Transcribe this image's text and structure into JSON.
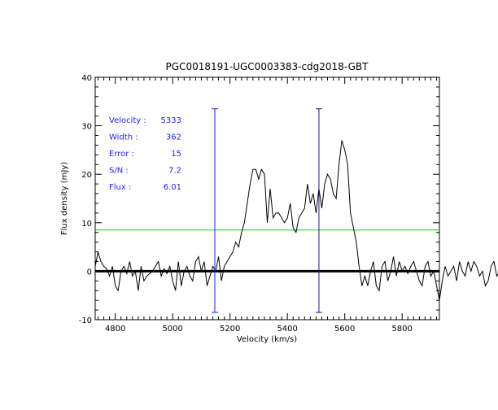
{
  "chart_data": {
    "type": "line",
    "title": "PGC0018191-UGC0003383-cdg2018-GBT",
    "xlabel": "Velocity (km/s)",
    "ylabel": "Flux density (mJy)",
    "xlim": [
      4730,
      5930
    ],
    "ylim": [
      -10,
      40
    ],
    "xticks": [
      4800,
      5000,
      5200,
      5400,
      5600,
      5800
    ],
    "yticks": [
      -10,
      0,
      10,
      20,
      30,
      40
    ],
    "grid": false,
    "x_start": 4730,
    "x_step": 10,
    "flux": [
      1,
      4,
      2,
      1,
      0.5,
      -1,
      1,
      -3,
      -4,
      0,
      1,
      -0.5,
      2,
      -1,
      0,
      -4,
      1,
      -2,
      -1,
      -0.5,
      0,
      1,
      2,
      -1,
      0.5,
      -0.5,
      1,
      -2,
      -4,
      2,
      -3,
      0,
      1,
      -1,
      -2,
      2,
      3,
      0,
      2,
      -3,
      -1,
      1,
      0,
      3,
      -2,
      1,
      2,
      3,
      4,
      6,
      5,
      8,
      10,
      14,
      18,
      21,
      21,
      19,
      21,
      20,
      10,
      17,
      11,
      12,
      12,
      11,
      10,
      11,
      14,
      9,
      8,
      11,
      12,
      13,
      18,
      14,
      16,
      12,
      17,
      13,
      18,
      20,
      19,
      16,
      15,
      22,
      27,
      25,
      22,
      12,
      9,
      6,
      1,
      -3,
      -1,
      -3,
      0,
      2,
      -3,
      -4,
      1,
      2,
      -2,
      0,
      3,
      -1,
      2,
      0,
      1,
      -0.5,
      1,
      2,
      0,
      -2,
      -3,
      1,
      2,
      -1,
      0,
      -3,
      -6,
      -2,
      1,
      -1,
      0,
      1,
      -2,
      2,
      0,
      -1,
      2,
      0,
      2,
      1,
      -1,
      0,
      -3,
      -2,
      1,
      2,
      -1,
      0,
      2,
      1
    ],
    "series_colors": {
      "spectrum": "#000000",
      "zero_line": "#000000",
      "threshold": "#00e000",
      "left_edge": "#2020ff",
      "right_edge": "#1a1a80"
    },
    "threshold_flux": 8.5,
    "left_edge_velocity": 5147,
    "right_edge_velocity": 5510,
    "annotations": [
      {
        "label": "Velocity :",
        "value": "5333"
      },
      {
        "label": "Width :",
        "value": "362"
      },
      {
        "label": "Error :",
        "value": "15"
      },
      {
        "label": "S/N :",
        "value": "7.2"
      },
      {
        "label": "Flux :",
        "value": "6.01"
      }
    ],
    "annotation_color": "#2020ff"
  }
}
